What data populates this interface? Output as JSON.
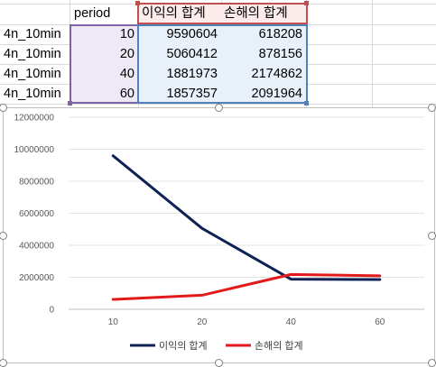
{
  "sheet": {
    "header": {
      "period": "period",
      "profit": "이익의 합계",
      "loss": "손해의 합계"
    },
    "rows": [
      {
        "label": "4n_10min",
        "period": "10",
        "profit": "9590604",
        "loss": "618208"
      },
      {
        "label": "4n_10min",
        "period": "20",
        "profit": "5060412",
        "loss": "878156"
      },
      {
        "label": "4n_10min",
        "period": "40",
        "profit": "1881973",
        "loss": "2174862"
      },
      {
        "label": "4n_10min",
        "period": "60",
        "profit": "1857357",
        "loss": "2091964"
      }
    ]
  },
  "chart_data": {
    "type": "line",
    "categories": [
      "10",
      "20",
      "40",
      "60"
    ],
    "series": [
      {
        "name": "이익의 합계",
        "values": [
          9590604,
          5060412,
          1881973,
          1857357
        ],
        "color": "#0d2254"
      },
      {
        "name": "손해의 합계",
        "values": [
          618208,
          878156,
          2174862,
          2091964
        ],
        "color": "#e31a1c"
      }
    ],
    "y_ticks": [
      "0",
      "2000000",
      "4000000",
      "6000000",
      "8000000",
      "10000000",
      "12000000"
    ],
    "ylim": [
      0,
      12000000
    ],
    "grid": true,
    "legend_position": "bottom"
  },
  "colors": {
    "selection_purple": "#8064a2",
    "selection_red": "#c0504d",
    "selection_blue": "#4f81bd",
    "gridline": "#d9d9d9"
  }
}
